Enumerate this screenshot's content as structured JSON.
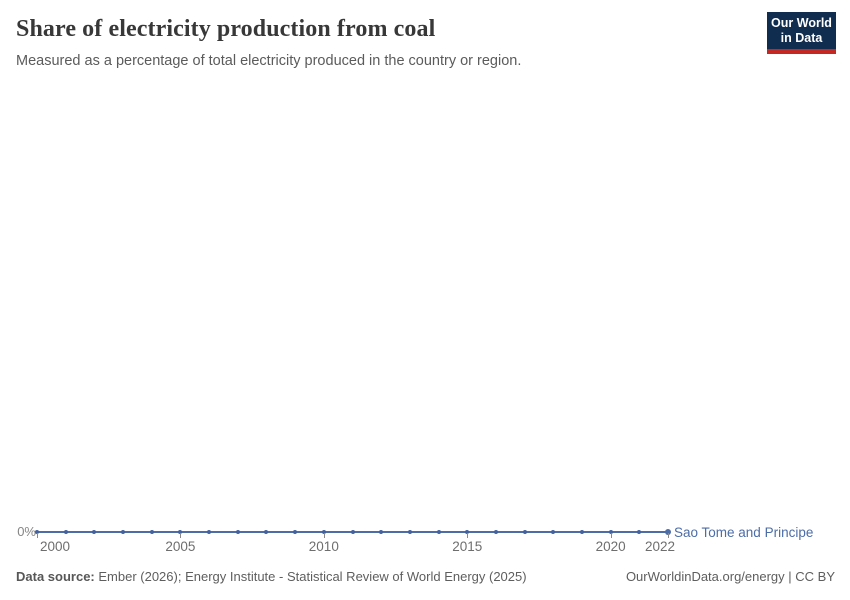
{
  "header": {
    "title": "Share of electricity production from coal",
    "subtitle": "Measured as a percentage of total electricity produced in the country or region.",
    "logo": {
      "line1": "Our World",
      "line2": "in Data"
    }
  },
  "chart": {
    "y_axis_zero_label": "0%",
    "entity_label": "Sao Tome and Principe"
  },
  "chart_data": {
    "type": "line",
    "title": "Share of electricity production from coal",
    "x": [
      2000,
      2001,
      2002,
      2003,
      2004,
      2005,
      2006,
      2007,
      2008,
      2009,
      2010,
      2011,
      2012,
      2013,
      2014,
      2015,
      2016,
      2017,
      2018,
      2019,
      2020,
      2021,
      2022
    ],
    "series": [
      {
        "name": "Sao Tome and Principe",
        "values": [
          0,
          0,
          0,
          0,
          0,
          0,
          0,
          0,
          0,
          0,
          0,
          0,
          0,
          0,
          0,
          0,
          0,
          0,
          0,
          0,
          0,
          0,
          0
        ],
        "color": "#4c6da6"
      }
    ],
    "xlabel": "",
    "ylabel": "",
    "x_ticks": [
      2000,
      2005,
      2010,
      2015,
      2020,
      2022
    ],
    "y_ticks": [
      "0%"
    ],
    "ylim": [
      0,
      0
    ],
    "xlim": [
      2000,
      2022
    ],
    "grid": false,
    "marker": "dot-per-year",
    "legend_position": "end-of-line"
  },
  "footer": {
    "source_label": "Data source:",
    "source_text": " Ember (2026); Energy Institute - Statistical Review of World Energy (2025)",
    "attribution": "OurWorldinData.org/energy | CC BY"
  },
  "colors": {
    "accent_line": "#4c6da6",
    "logo_navy": "#102d50",
    "logo_red": "#c52822",
    "title_text": "#383838",
    "subtitle_text": "#5b5b5b",
    "axis_text": "#6e6e6e"
  }
}
